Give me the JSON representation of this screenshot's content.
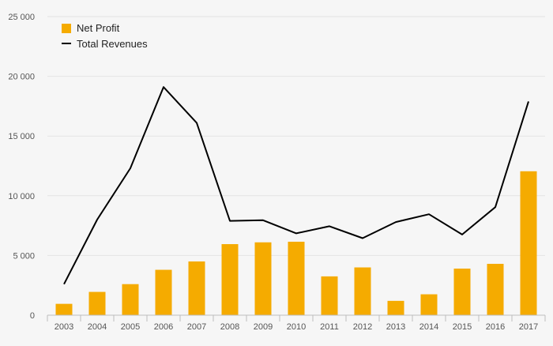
{
  "chart_data": {
    "type": "bar",
    "categories": [
      "2003",
      "2004",
      "2005",
      "2006",
      "2007",
      "2008",
      "2009",
      "2010",
      "2011",
      "2012",
      "2013",
      "2014",
      "2015",
      "2016",
      "2017"
    ],
    "series": [
      {
        "name": "Net Profit",
        "kind": "bar",
        "color": "#f5ab00",
        "values": [
          950,
          1950,
          2600,
          3800,
          4500,
          5950,
          6100,
          6150,
          3250,
          4000,
          1200,
          1750,
          3900,
          4300,
          12050
        ]
      },
      {
        "name": "Total Revenues",
        "kind": "line",
        "color": "#000000",
        "values": [
          2600,
          8000,
          12300,
          19100,
          16100,
          7900,
          7950,
          6850,
          7450,
          6450,
          7800,
          8450,
          6750,
          9050,
          17900
        ]
      }
    ],
    "ylim": [
      0,
      25000
    ],
    "yticks": [
      0,
      5000,
      10000,
      15000,
      20000,
      25000
    ],
    "ytick_labels": [
      "0",
      "5 000",
      "10 000",
      "15 000",
      "20 000",
      "25 000"
    ],
    "grid": true,
    "legend_position": "top-left"
  }
}
